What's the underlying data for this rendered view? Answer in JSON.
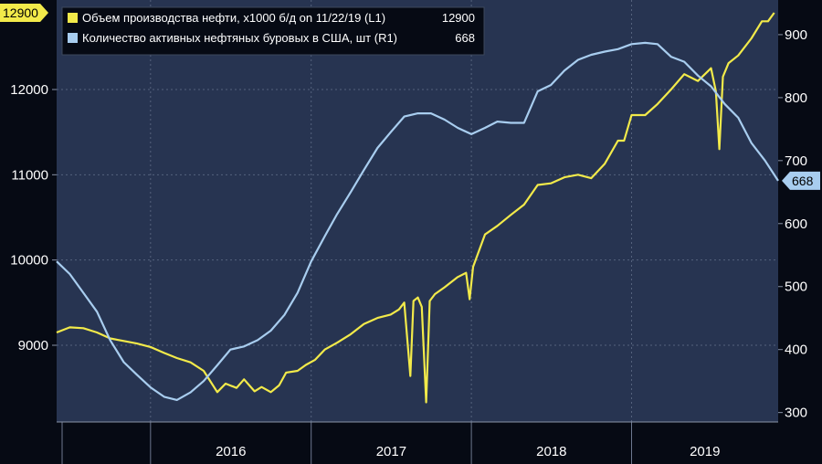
{
  "chart_data": {
    "type": "line",
    "legend_placement": "top-left",
    "grid": true,
    "x_axis": {
      "tick_labels": [
        "2016",
        "2017",
        "2018",
        "2019"
      ],
      "range": [
        "2015-06",
        "2019-12"
      ]
    },
    "y_left": {
      "ticks": [
        9000,
        10000,
        11000,
        12000
      ],
      "range": [
        8100,
        13050
      ]
    },
    "y_right": {
      "ticks": [
        300,
        400,
        500,
        600,
        700,
        800,
        900
      ],
      "range": [
        285,
        955
      ]
    },
    "series": [
      {
        "name": "Объем производства нефти, х1000 б/д on 11/22/19 (L1)",
        "legend_value": "12900",
        "last_value_label": "12900",
        "axis": "left",
        "color": "#f2ea4a",
        "points": [
          [
            "2015-06-01",
            9150
          ],
          [
            "2015-07-01",
            9210
          ],
          [
            "2015-08-01",
            9200
          ],
          [
            "2015-09-01",
            9150
          ],
          [
            "2015-10-01",
            9080
          ],
          [
            "2015-11-01",
            9050
          ],
          [
            "2015-12-01",
            9020
          ],
          [
            "2016-01-01",
            8980
          ],
          [
            "2016-02-01",
            8910
          ],
          [
            "2016-03-01",
            8850
          ],
          [
            "2016-04-01",
            8800
          ],
          [
            "2016-05-01",
            8700
          ],
          [
            "2016-06-01",
            8450
          ],
          [
            "2016-06-20",
            8550
          ],
          [
            "2016-07-15",
            8500
          ],
          [
            "2016-08-01",
            8600
          ],
          [
            "2016-08-25",
            8460
          ],
          [
            "2016-09-10",
            8510
          ],
          [
            "2016-10-01",
            8450
          ],
          [
            "2016-10-20",
            8530
          ],
          [
            "2016-11-05",
            8680
          ],
          [
            "2016-12-01",
            8700
          ],
          [
            "2016-12-20",
            8770
          ],
          [
            "2017-01-10",
            8830
          ],
          [
            "2017-02-01",
            8950
          ],
          [
            "2017-03-01",
            9030
          ],
          [
            "2017-04-01",
            9130
          ],
          [
            "2017-05-01",
            9250
          ],
          [
            "2017-06-01",
            9320
          ],
          [
            "2017-07-01",
            9360
          ],
          [
            "2017-07-20",
            9420
          ],
          [
            "2017-08-01",
            9500
          ],
          [
            "2017-08-15",
            8640
          ],
          [
            "2017-08-22",
            9520
          ],
          [
            "2017-09-01",
            9560
          ],
          [
            "2017-09-10",
            9450
          ],
          [
            "2017-09-20",
            8330
          ],
          [
            "2017-09-28",
            9520
          ],
          [
            "2017-10-10",
            9600
          ],
          [
            "2017-11-01",
            9680
          ],
          [
            "2017-12-01",
            9800
          ],
          [
            "2017-12-20",
            9850
          ],
          [
            "2017-12-28",
            9540
          ],
          [
            "2018-01-05",
            9920
          ],
          [
            "2018-02-01",
            10300
          ],
          [
            "2018-03-01",
            10400
          ],
          [
            "2018-04-01",
            10530
          ],
          [
            "2018-05-01",
            10650
          ],
          [
            "2018-06-01",
            10880
          ],
          [
            "2018-07-01",
            10900
          ],
          [
            "2018-08-01",
            10970
          ],
          [
            "2018-09-01",
            11000
          ],
          [
            "2018-10-01",
            10960
          ],
          [
            "2018-11-01",
            11130
          ],
          [
            "2018-12-01",
            11400
          ],
          [
            "2018-12-15",
            11400
          ],
          [
            "2019-01-01",
            11700
          ],
          [
            "2019-02-01",
            11700
          ],
          [
            "2019-03-01",
            11830
          ],
          [
            "2019-04-01",
            12000
          ],
          [
            "2019-05-01",
            12180
          ],
          [
            "2019-06-01",
            12100
          ],
          [
            "2019-07-01",
            12250
          ],
          [
            "2019-07-12",
            11980
          ],
          [
            "2019-07-20",
            11300
          ],
          [
            "2019-07-28",
            12150
          ],
          [
            "2019-08-10",
            12310
          ],
          [
            "2019-09-01",
            12400
          ],
          [
            "2019-10-01",
            12600
          ],
          [
            "2019-10-25",
            12800
          ],
          [
            "2019-11-08",
            12800
          ],
          [
            "2019-11-22",
            12900
          ]
        ]
      },
      {
        "name": "Количество активных нефтяных буровых в США, шт (R1)",
        "legend_value": "668",
        "last_value_label": "668",
        "axis": "right",
        "color": "#a8cdef",
        "points": [
          [
            "2015-06-01",
            540
          ],
          [
            "2015-07-01",
            520
          ],
          [
            "2015-08-01",
            490
          ],
          [
            "2015-09-01",
            460
          ],
          [
            "2015-10-01",
            415
          ],
          [
            "2015-11-01",
            380
          ],
          [
            "2015-12-01",
            360
          ],
          [
            "2016-01-01",
            340
          ],
          [
            "2016-02-01",
            325
          ],
          [
            "2016-03-01",
            320
          ],
          [
            "2016-04-01",
            332
          ],
          [
            "2016-05-01",
            350
          ],
          [
            "2016-06-01",
            375
          ],
          [
            "2016-07-01",
            400
          ],
          [
            "2016-08-01",
            405
          ],
          [
            "2016-09-01",
            415
          ],
          [
            "2016-10-01",
            430
          ],
          [
            "2016-11-01",
            455
          ],
          [
            "2016-12-01",
            490
          ],
          [
            "2017-01-01",
            540
          ],
          [
            "2017-02-01",
            580
          ],
          [
            "2017-03-01",
            615
          ],
          [
            "2017-04-01",
            650
          ],
          [
            "2017-05-01",
            685
          ],
          [
            "2017-06-01",
            720
          ],
          [
            "2017-07-01",
            745
          ],
          [
            "2017-08-01",
            770
          ],
          [
            "2017-09-01",
            775
          ],
          [
            "2017-10-01",
            775
          ],
          [
            "2017-11-01",
            765
          ],
          [
            "2017-12-01",
            752
          ],
          [
            "2018-01-01",
            742
          ],
          [
            "2018-02-01",
            752
          ],
          [
            "2018-03-01",
            762
          ],
          [
            "2018-04-01",
            760
          ],
          [
            "2018-05-01",
            760
          ],
          [
            "2018-06-01",
            810
          ],
          [
            "2018-07-01",
            820
          ],
          [
            "2018-08-01",
            843
          ],
          [
            "2018-09-01",
            860
          ],
          [
            "2018-10-01",
            868
          ],
          [
            "2018-11-01",
            873
          ],
          [
            "2018-12-01",
            877
          ],
          [
            "2019-01-01",
            885
          ],
          [
            "2019-02-01",
            887
          ],
          [
            "2019-03-01",
            885
          ],
          [
            "2019-04-01",
            865
          ],
          [
            "2019-05-01",
            857
          ],
          [
            "2019-06-01",
            835
          ],
          [
            "2019-07-01",
            818
          ],
          [
            "2019-08-01",
            790
          ],
          [
            "2019-09-01",
            768
          ],
          [
            "2019-10-01",
            728
          ],
          [
            "2019-11-01",
            700
          ],
          [
            "2019-12-01",
            668
          ]
        ]
      }
    ]
  }
}
